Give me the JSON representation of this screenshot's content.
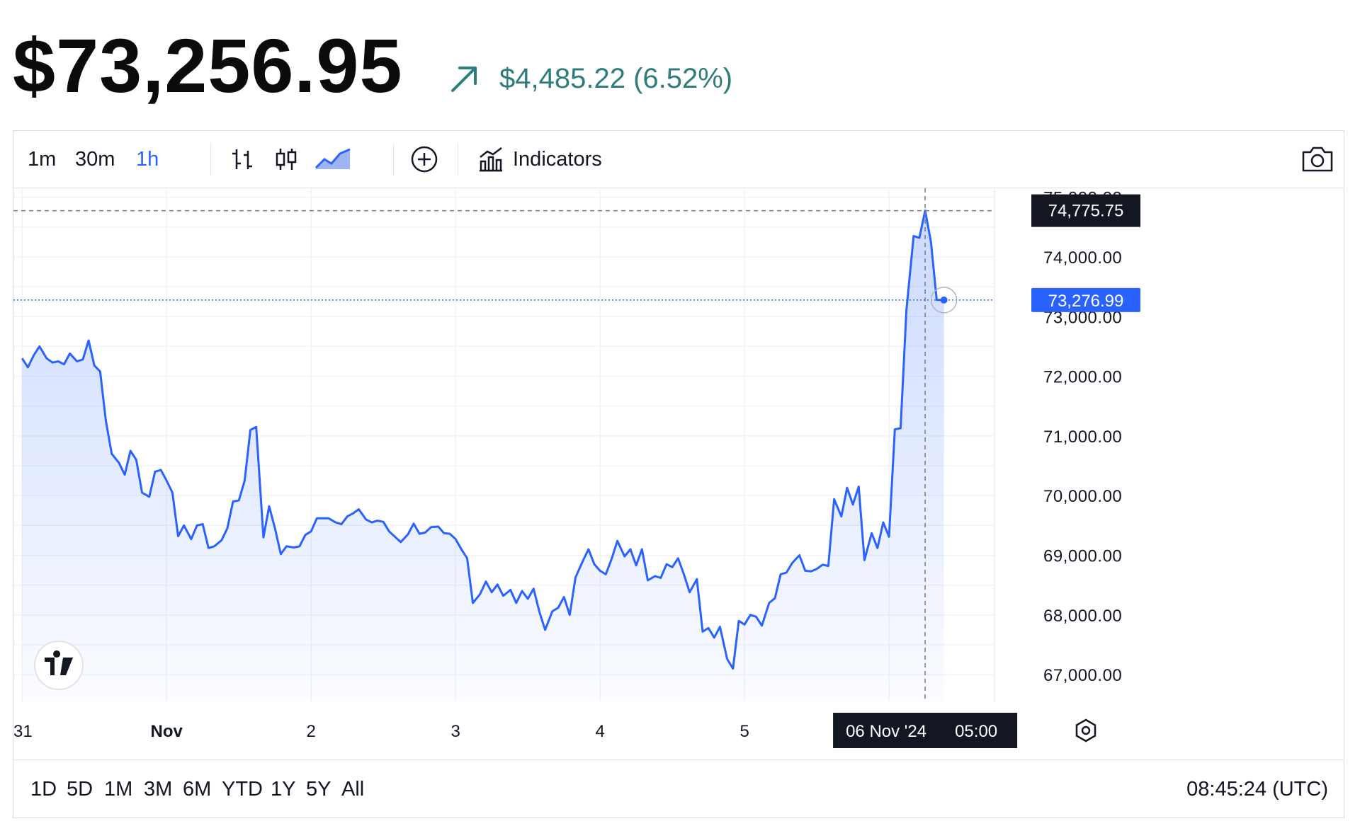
{
  "header": {
    "price": "$73,256.95",
    "change": "$4,485.22 (6.52%)",
    "change_color": "#2e7d7a",
    "change_icon": "arrow-up-right-icon"
  },
  "toolbar": {
    "intervals": [
      "1m",
      "30m",
      "1h"
    ],
    "active_interval": "1h",
    "indicators_label": "Indicators",
    "accent_color": "#2962ff"
  },
  "footer": {
    "ranges": [
      "1D",
      "5D",
      "1M",
      "3M",
      "6M",
      "YTD",
      "1Y",
      "5Y",
      "All"
    ],
    "clock": "08:45:24 (UTC)"
  },
  "chart_data": {
    "type": "area",
    "title": "",
    "xlabel": "",
    "ylabel": "",
    "line_color": "#2962ff",
    "x_ticks": [
      "31",
      "Nov",
      "2",
      "3",
      "4",
      "5"
    ],
    "y_ticks": [
      "75,000.00",
      "74,000.00",
      "73,000.00",
      "72,000.00",
      "71,000.00",
      "70,000.00",
      "69,000.00",
      "68,000.00",
      "67,000.00"
    ],
    "ylim": [
      66550,
      75150
    ],
    "x_range_days": [
      -0.06,
      6.73
    ],
    "crosshair": {
      "x_label": "06 Nov '24",
      "time_label": "05:00",
      "price_label": "74,775.75"
    },
    "last_price_label": "73,276.99",
    "grid": true,
    "points": [
      [
        0.0,
        72300
      ],
      [
        0.04,
        72150
      ],
      [
        0.08,
        72350
      ],
      [
        0.12,
        72500
      ],
      [
        0.17,
        72300
      ],
      [
        0.21,
        72230
      ],
      [
        0.25,
        72250
      ],
      [
        0.29,
        72200
      ],
      [
        0.33,
        72380
      ],
      [
        0.38,
        72250
      ],
      [
        0.42,
        72280
      ],
      [
        0.46,
        72600
      ],
      [
        0.5,
        72180
      ],
      [
        0.54,
        72080
      ],
      [
        0.58,
        71250
      ],
      [
        0.62,
        70700
      ],
      [
        0.67,
        70550
      ],
      [
        0.71,
        70350
      ],
      [
        0.75,
        70750
      ],
      [
        0.79,
        70600
      ],
      [
        0.83,
        70050
      ],
      [
        0.88,
        69980
      ],
      [
        0.92,
        70400
      ],
      [
        0.96,
        70430
      ],
      [
        1.0,
        70250
      ],
      [
        1.04,
        70050
      ],
      [
        1.08,
        69320
      ],
      [
        1.12,
        69500
      ],
      [
        1.17,
        69270
      ],
      [
        1.21,
        69500
      ],
      [
        1.25,
        69520
      ],
      [
        1.29,
        69120
      ],
      [
        1.33,
        69150
      ],
      [
        1.38,
        69250
      ],
      [
        1.42,
        69450
      ],
      [
        1.46,
        69900
      ],
      [
        1.5,
        69920
      ],
      [
        1.54,
        70250
      ],
      [
        1.58,
        71100
      ],
      [
        1.62,
        71150
      ],
      [
        1.67,
        69300
      ],
      [
        1.71,
        69820
      ],
      [
        1.75,
        69450
      ],
      [
        1.79,
        69020
      ],
      [
        1.83,
        69150
      ],
      [
        1.88,
        69130
      ],
      [
        1.92,
        69150
      ],
      [
        1.96,
        69340
      ],
      [
        2.0,
        69400
      ],
      [
        2.04,
        69620
      ],
      [
        2.08,
        69620
      ],
      [
        2.12,
        69620
      ],
      [
        2.17,
        69550
      ],
      [
        2.21,
        69520
      ],
      [
        2.25,
        69650
      ],
      [
        2.29,
        69700
      ],
      [
        2.33,
        69770
      ],
      [
        2.38,
        69600
      ],
      [
        2.42,
        69550
      ],
      [
        2.46,
        69580
      ],
      [
        2.5,
        69560
      ],
      [
        2.54,
        69400
      ],
      [
        2.58,
        69310
      ],
      [
        2.62,
        69220
      ],
      [
        2.67,
        69350
      ],
      [
        2.71,
        69530
      ],
      [
        2.75,
        69360
      ],
      [
        2.79,
        69380
      ],
      [
        2.83,
        69470
      ],
      [
        2.88,
        69480
      ],
      [
        2.92,
        69370
      ],
      [
        2.96,
        69360
      ],
      [
        3.0,
        69270
      ],
      [
        3.04,
        69100
      ],
      [
        3.08,
        68950
      ],
      [
        3.12,
        68200
      ],
      [
        3.17,
        68350
      ],
      [
        3.21,
        68560
      ],
      [
        3.25,
        68380
      ],
      [
        3.29,
        68510
      ],
      [
        3.33,
        68320
      ],
      [
        3.38,
        68420
      ],
      [
        3.42,
        68200
      ],
      [
        3.46,
        68400
      ],
      [
        3.5,
        68270
      ],
      [
        3.54,
        68440
      ],
      [
        3.58,
        68050
      ],
      [
        3.62,
        67750
      ],
      [
        3.67,
        68060
      ],
      [
        3.71,
        68120
      ],
      [
        3.75,
        68300
      ],
      [
        3.79,
        68000
      ],
      [
        3.83,
        68630
      ],
      [
        3.88,
        68900
      ],
      [
        3.92,
        69100
      ],
      [
        3.96,
        68850
      ],
      [
        4.0,
        68740
      ],
      [
        4.04,
        68680
      ],
      [
        4.08,
        68940
      ],
      [
        4.12,
        69240
      ],
      [
        4.17,
        68980
      ],
      [
        4.21,
        69100
      ],
      [
        4.25,
        68830
      ],
      [
        4.29,
        69100
      ],
      [
        4.33,
        68580
      ],
      [
        4.38,
        68650
      ],
      [
        4.42,
        68620
      ],
      [
        4.46,
        68850
      ],
      [
        4.5,
        68800
      ],
      [
        4.54,
        68950
      ],
      [
        4.58,
        68680
      ],
      [
        4.62,
        68380
      ],
      [
        4.67,
        68600
      ],
      [
        4.71,
        67720
      ],
      [
        4.75,
        67780
      ],
      [
        4.79,
        67620
      ],
      [
        4.83,
        67800
      ],
      [
        4.88,
        67260
      ],
      [
        4.92,
        67100
      ],
      [
        4.96,
        67900
      ],
      [
        5.0,
        67840
      ],
      [
        5.04,
        68000
      ],
      [
        5.08,
        67970
      ],
      [
        5.12,
        67820
      ],
      [
        5.17,
        68200
      ],
      [
        5.21,
        68280
      ],
      [
        5.25,
        68680
      ],
      [
        5.29,
        68710
      ],
      [
        5.33,
        68870
      ],
      [
        5.38,
        69000
      ],
      [
        5.42,
        68740
      ],
      [
        5.46,
        68730
      ],
      [
        5.5,
        68770
      ],
      [
        5.54,
        68840
      ],
      [
        5.58,
        68820
      ],
      [
        5.62,
        69940
      ],
      [
        5.67,
        69650
      ],
      [
        5.71,
        70130
      ],
      [
        5.75,
        69850
      ],
      [
        5.79,
        70150
      ],
      [
        5.83,
        68920
      ],
      [
        5.88,
        69370
      ],
      [
        5.92,
        69120
      ],
      [
        5.96,
        69550
      ],
      [
        6.0,
        69310
      ],
      [
        6.04,
        71110
      ],
      [
        6.08,
        71130
      ],
      [
        6.12,
        73100
      ],
      [
        6.17,
        74350
      ],
      [
        6.21,
        74320
      ],
      [
        6.25,
        74775
      ],
      [
        6.29,
        74250
      ],
      [
        6.33,
        73280
      ],
      [
        6.38,
        73277
      ]
    ]
  }
}
